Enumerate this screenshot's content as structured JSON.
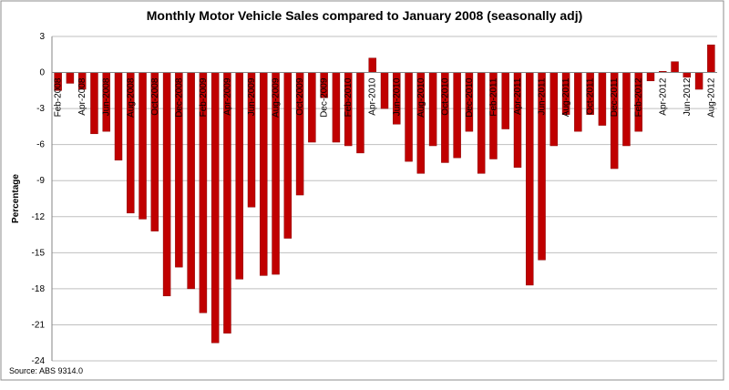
{
  "chart_data": {
    "type": "bar",
    "title": "Monthly Motor Vehicle Sales compared to January 2008 (seasonally adj)",
    "y_label": "Percentage",
    "source": "Source: ABS 9314.0",
    "categories": [
      "Feb-2008",
      null,
      "Apr-2008",
      null,
      "Jun-2008",
      null,
      "Aug-2008",
      null,
      "Oct-2008",
      null,
      "Dec-2008",
      null,
      "Feb-2009",
      null,
      "Apr-2009",
      null,
      "Jun-2009",
      null,
      "Aug-2009",
      null,
      "Oct-2009",
      null,
      "Dec-2009",
      null,
      "Feb-2010",
      null,
      "Apr-2010",
      null,
      "Jun-2010",
      null,
      "Aug-2010",
      null,
      "Oct-2010",
      null,
      "Dec-2010",
      null,
      "Feb-2011",
      null,
      "Apr-2011",
      null,
      "Jun-2011",
      null,
      "Aug-2011",
      null,
      "Oct-2011",
      null,
      "Dec-2011",
      null,
      "Feb-2012",
      null,
      "Apr-2012",
      null,
      "Jun-2012",
      null,
      "Aug-2012"
    ],
    "values": [
      -1.5,
      -0.9,
      -1.4,
      -5.1,
      -4.9,
      -7.3,
      -11.7,
      -12.2,
      -13.2,
      -18.6,
      -16.2,
      -18.0,
      -20.0,
      -22.5,
      -21.7,
      -17.2,
      -11.2,
      -16.9,
      -16.8,
      -13.8,
      -10.2,
      -5.8,
      -2.1,
      -5.8,
      -6.1,
      -6.7,
      1.2,
      -3.0,
      -4.3,
      -7.4,
      -8.4,
      -6.1,
      -7.5,
      -7.1,
      -4.9,
      -8.4,
      -7.2,
      -4.7,
      -7.9,
      -17.7,
      -15.6,
      -6.1,
      -3.5,
      -4.9,
      -3.5,
      -4.4,
      -8.0,
      -6.1,
      -4.9,
      -0.7,
      0.1,
      0.9,
      -0.4,
      -1.4,
      2.3
    ],
    "color": "#c00000",
    "ylim": [
      -24,
      3
    ],
    "yticks": [
      3,
      0,
      -3,
      -6,
      -9,
      -12,
      -15,
      -18,
      -21,
      -24
    ],
    "grid": true
  }
}
